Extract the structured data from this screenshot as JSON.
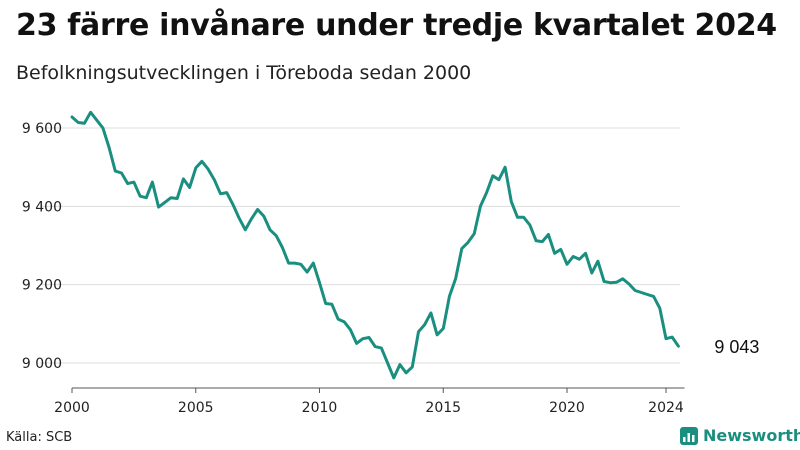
{
  "title": "23 färre invånare under tredje kvartalet 2024",
  "subtitle": "Befolkningsutvecklingen i Töreboda sedan 2000",
  "source": "Källa: SCB",
  "brand": {
    "name": "Newsworthy",
    "icon": "bar-chart-logo-icon",
    "color": "#1a8f80"
  },
  "colors": {
    "line": "#1a8f80",
    "grid": "#dddddd",
    "axis": "#555555"
  },
  "chart_data": {
    "type": "line",
    "title": "23 färre invånare under tredje kvartalet 2024",
    "subtitle": "Befolkningsutvecklingen i Töreboda sedan 2000",
    "xlabel": "",
    "ylabel": "",
    "xlim": [
      2000,
      2024.75
    ],
    "ylim": [
      8960,
      9660
    ],
    "y_ticks": [
      9000,
      9200,
      9400,
      9600
    ],
    "y_tick_labels": [
      "9 000",
      "9 200",
      "9 400",
      "9 600"
    ],
    "x_ticks": [
      2000,
      2005,
      2010,
      2015,
      2020,
      2024
    ],
    "x_tick_labels": [
      "2000",
      "2005",
      "2010",
      "2015",
      "2020",
      "2024"
    ],
    "grid": true,
    "end_label": "9 043",
    "series": [
      {
        "x": [
          2000.0,
          2000.25,
          2000.5,
          2000.75,
          2001.0,
          2001.25,
          2001.5,
          2001.75,
          2002.0,
          2002.25,
          2002.5,
          2002.75,
          2003.0,
          2003.25,
          2003.5,
          2003.75,
          2004.0,
          2004.25,
          2004.5,
          2004.75,
          2005.0,
          2005.25,
          2005.5,
          2005.75,
          2006.0,
          2006.25,
          2006.5,
          2006.75,
          2007.0,
          2007.25,
          2007.5,
          2007.75,
          2008.0,
          2008.25,
          2008.5,
          2008.75,
          2009.0,
          2009.25,
          2009.5,
          2009.75,
          2010.0,
          2010.25,
          2010.5,
          2010.75,
          2011.0,
          2011.25,
          2011.5,
          2011.75,
          2012.0,
          2012.25,
          2012.5,
          2012.75,
          2013.0,
          2013.25,
          2013.5,
          2013.75,
          2014.0,
          2014.25,
          2014.5,
          2014.75,
          2015.0,
          2015.25,
          2015.5,
          2015.75,
          2016.0,
          2016.25,
          2016.5,
          2016.75,
          2017.0,
          2017.25,
          2017.5,
          2017.75,
          2018.0,
          2018.25,
          2018.5,
          2018.75,
          2019.0,
          2019.25,
          2019.5,
          2019.75,
          2020.0,
          2020.25,
          2020.5,
          2020.75,
          2021.0,
          2021.25,
          2021.5,
          2021.75,
          2022.0,
          2022.25,
          2022.5,
          2022.75,
          2023.0,
          2023.25,
          2023.5,
          2023.75,
          2024.0,
          2024.25,
          2024.5
        ],
        "values": [
          9628,
          9614,
          9612,
          9640,
          9620,
          9600,
          9550,
          9490,
          9485,
          9458,
          9462,
          9426,
          9422,
          9462,
          9398,
          9410,
          9422,
          9420,
          9470,
          9448,
          9498,
          9515,
          9495,
          9468,
          9432,
          9435,
          9405,
          9370,
          9340,
          9368,
          9392,
          9375,
          9340,
          9325,
          9295,
          9255,
          9255,
          9252,
          9232,
          9255,
          9205,
          9152,
          9150,
          9112,
          9105,
          9085,
          9050,
          9062,
          9065,
          9042,
          9038,
          9000,
          8962,
          8996,
          8975,
          8990,
          9080,
          9098,
          9128,
          9072,
          9088,
          9170,
          9215,
          9292,
          9308,
          9330,
          9400,
          9435,
          9478,
          9468,
          9500,
          9412,
          9372,
          9372,
          9352,
          9312,
          9310,
          9328,
          9280,
          9290,
          9252,
          9272,
          9265,
          9280,
          9230,
          9260,
          9208,
          9205,
          9206,
          9215,
          9202,
          9185,
          9180,
          9175,
          9170,
          9140,
          9062,
          9066,
          9043
        ]
      }
    ]
  }
}
